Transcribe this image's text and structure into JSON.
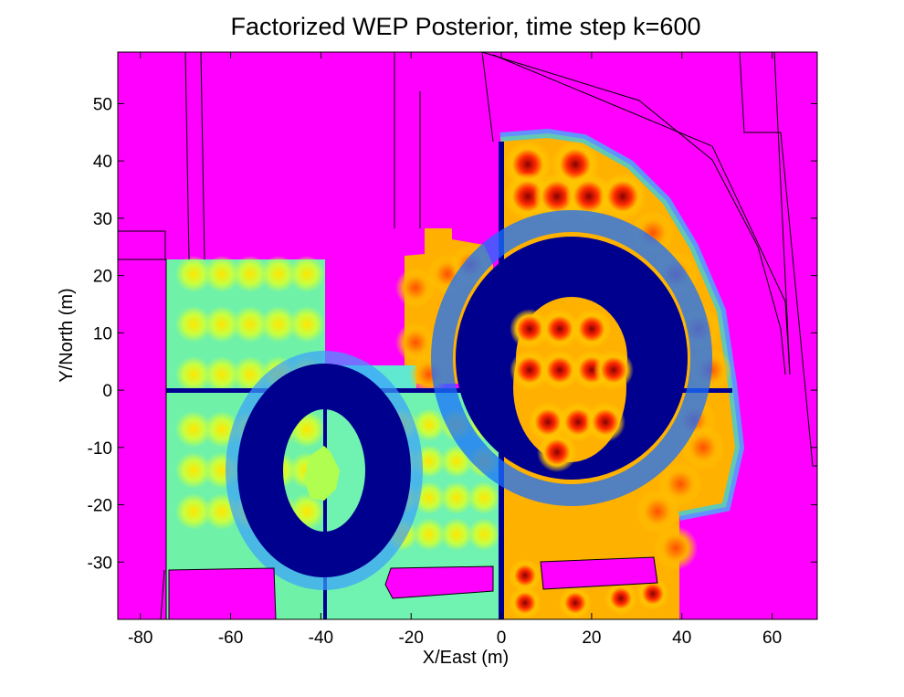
{
  "chart_data": {
    "type": "heatmap",
    "title": "Factorized WEP Posterior, time step k=600",
    "xlabel": "X/East (m)",
    "ylabel": "Y/North (m)",
    "xlim": [
      -85,
      70
    ],
    "ylim": [
      -40,
      59
    ],
    "x_ticks": [
      -80,
      -60,
      -40,
      -20,
      0,
      20,
      40,
      60
    ],
    "y_ticks": [
      -30,
      -20,
      -10,
      0,
      10,
      20,
      30,
      40,
      50
    ],
    "x_tick_labels": [
      "-80",
      "-60",
      "-40",
      "-20",
      "0",
      "20",
      "40",
      "60"
    ],
    "y_tick_labels": [
      "-30",
      "-20",
      "-10",
      "0",
      "10",
      "20",
      "30",
      "40",
      "50"
    ],
    "grid": false,
    "colormap": "jet",
    "colors": {
      "background": "#ff00ff",
      "low": "#00008f",
      "high": "#800000"
    },
    "regions": {
      "left_block": {
        "x": [
          -75,
          -40
        ],
        "y": [
          -40,
          23
        ]
      },
      "left_ring": {
        "center": [
          -38,
          -13
        ],
        "outer_radius": [
          14,
          18.5
        ],
        "inner_radius": [
          3,
          6
        ]
      },
      "right_ring": {
        "center": [
          14,
          2
        ],
        "outer_radius": [
          27,
          28
        ],
        "inner_radius": [
          11,
          12
        ]
      },
      "hot_spot_rows_y": [
        47,
        42,
        33,
        12,
        7,
        3,
        -6,
        -13,
        -26,
        -32
      ]
    }
  }
}
